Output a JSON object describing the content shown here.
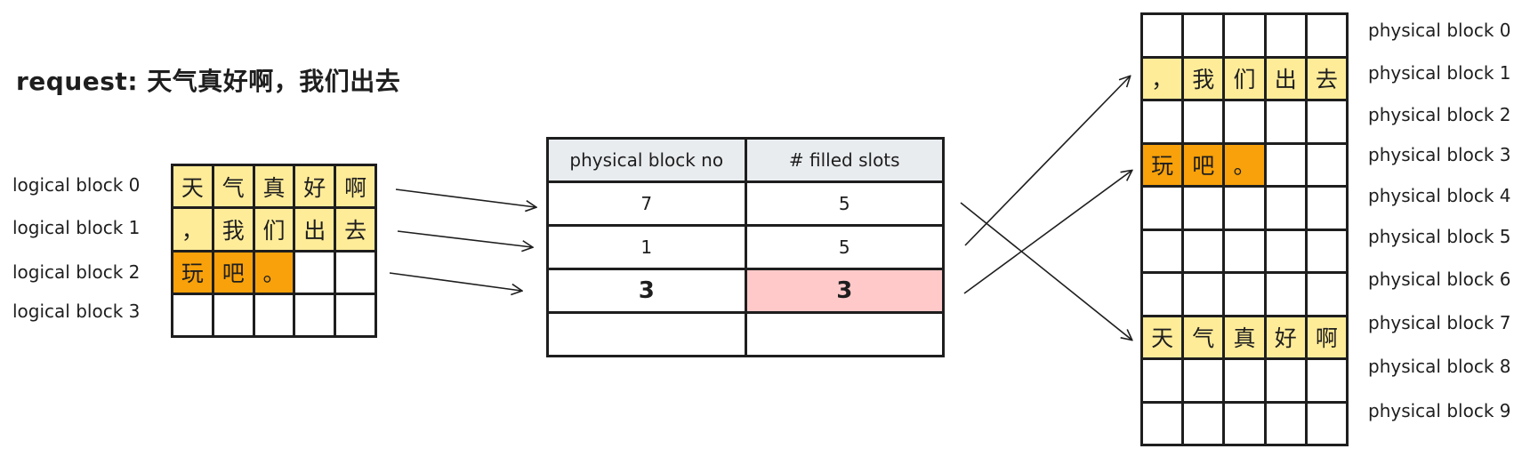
{
  "request": {
    "label": "request:",
    "text": "天气真好啊，我们出去"
  },
  "logical_blocks": {
    "labels": [
      "logical block 0",
      "logical block 1",
      "logical block 2",
      "logical block 3"
    ],
    "rows": [
      [
        "天",
        "气",
        "真",
        "好",
        "啊"
      ],
      [
        "，",
        "我",
        "们",
        "出",
        "去"
      ],
      [
        "玩",
        "吧",
        "。",
        "",
        ""
      ],
      [
        "",
        "",
        "",
        "",
        ""
      ]
    ]
  },
  "block_table": {
    "headers": [
      "physical block no",
      "# filled slots"
    ],
    "rows": [
      [
        "7",
        "5"
      ],
      [
        "1",
        "5"
      ],
      [
        "3",
        "3"
      ],
      [
        "",
        ""
      ]
    ]
  },
  "physical_blocks": {
    "labels": [
      "physical block 0",
      "physical block 1",
      "physical block 2",
      "physical block 3",
      "physical block 4",
      "physical block 5",
      "physical block 6",
      "physical block 7",
      "physical block 8",
      "physical block 9"
    ],
    "rows": [
      [
        "",
        "",
        "",
        "",
        ""
      ],
      [
        "，",
        "我",
        "们",
        "出",
        "去"
      ],
      [
        "",
        "",
        "",
        "",
        ""
      ],
      [
        "玩",
        "吧",
        "。",
        "",
        ""
      ],
      [
        "",
        "",
        "",
        "",
        ""
      ],
      [
        "",
        "",
        "",
        "",
        ""
      ],
      [
        "",
        "",
        "",
        "",
        ""
      ],
      [
        "天",
        "气",
        "真",
        "好",
        "啊"
      ],
      [
        "",
        "",
        "",
        "",
        ""
      ],
      [
        "",
        "",
        "",
        "",
        ""
      ]
    ]
  },
  "colors": {
    "full_block": "#ffec99",
    "partial_block": "#f8a10a",
    "header_bg": "#e9ecef",
    "highlight": "#ffc9c9",
    "stroke": "#1e1e1e"
  }
}
